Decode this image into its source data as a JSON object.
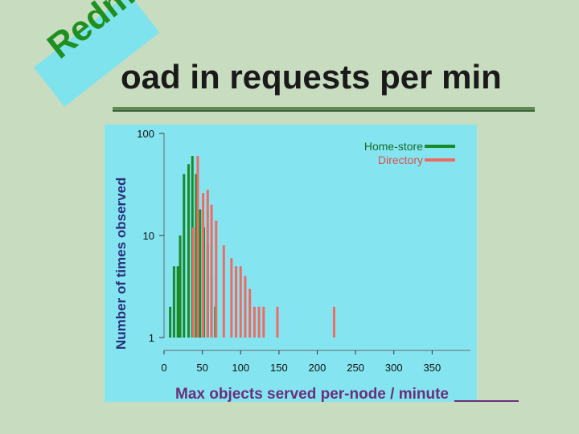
{
  "slide": {
    "title": "oad in requests per min",
    "stamp": "Redmond"
  },
  "colors": {
    "background": "#c8dcc0",
    "panel": "#84e5f1",
    "home_store": "#1a8a2a",
    "directory": "#f06a62",
    "stamp_bg": "#7fe3ee",
    "stamp_text": "#1f8f1f"
  },
  "chart_data": {
    "type": "bar",
    "title": "",
    "xlabel": "Max objects served per-node / minute",
    "ylabel": "Number of times observed",
    "xlim": [
      0,
      400
    ],
    "ylim": [
      1,
      100
    ],
    "yscale": "log",
    "xticks": [
      0,
      50,
      100,
      150,
      200,
      250,
      300,
      350
    ],
    "yticks": [
      1,
      10,
      100
    ],
    "legend_position": "top-right",
    "grid": false,
    "series": [
      {
        "name": "Home-store",
        "color": "#1a8a2a",
        "x": [
          8,
          13,
          18,
          21,
          26,
          32,
          37,
          42,
          47,
          52,
          57,
          62,
          67
        ],
        "values": [
          2,
          5,
          5,
          10,
          40,
          50,
          60,
          40,
          18,
          12,
          8,
          4,
          2
        ]
      },
      {
        "name": "Directory",
        "color": "#f06a62",
        "x": [
          28,
          38,
          44,
          51,
          57,
          62,
          68,
          78,
          88,
          94,
          100,
          106,
          112,
          118,
          124,
          130,
          148,
          160,
          168,
          174,
          180,
          190,
          200,
          208,
          216,
          222,
          228,
          236,
          242,
          250,
          256,
          264,
          290,
          330,
          334,
          348,
          398
        ],
        "values": [
          1,
          12,
          60,
          26,
          28,
          20,
          14,
          8,
          6,
          5,
          5,
          4,
          3,
          2,
          2,
          2,
          2,
          1,
          1,
          1,
          1,
          1,
          1,
          1,
          1,
          2,
          1,
          1,
          1,
          1,
          1,
          1,
          1,
          1,
          1,
          1,
          1
        ]
      }
    ]
  }
}
